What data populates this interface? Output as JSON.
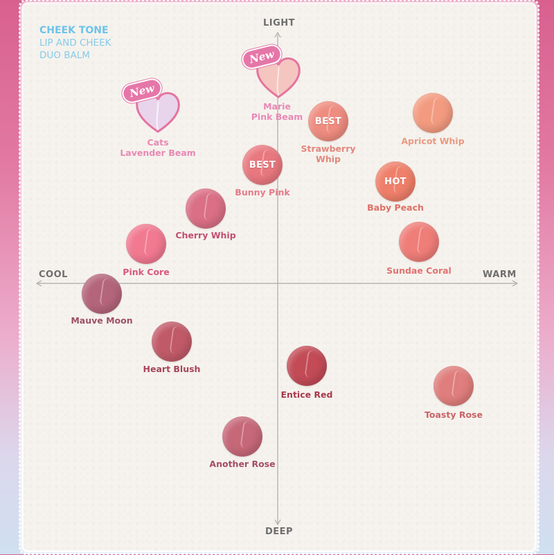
{
  "brand": {
    "line1": "CHEEK TONE",
    "line2": "LIP AND CHEEK",
    "line3": "DUO BALM"
  },
  "axes": {
    "top": "LIGHT",
    "bottom": "DEEP",
    "left": "COOL",
    "right": "WARM"
  },
  "new_badge": "New",
  "new_items": [
    {
      "id": "cats",
      "name": "Cats\nLavender Beam",
      "color": "#e7d3ea",
      "edge": "#e4709f"
    },
    {
      "id": "marie",
      "name": "Marie\nPink Beam",
      "color": "#f4c5bf",
      "edge": "#e4709f"
    }
  ],
  "swatches": [
    {
      "id": "strawberry-whip",
      "name": "Strawberry\nWhip",
      "badge": "BEST",
      "color": "#ef8c80",
      "label_color": "#e2867c"
    },
    {
      "id": "apricot-whip",
      "name": "Apricot Whip",
      "badge": "",
      "color": "#f39b80",
      "label_color": "#e99a82"
    },
    {
      "id": "bunny-pink",
      "name": "Bunny Pink",
      "badge": "BEST",
      "color": "#e8787f",
      "label_color": "#e57c8a"
    },
    {
      "id": "baby-peach",
      "name": "Baby Peach",
      "badge": "HOT",
      "color": "#ef7f6a",
      "label_color": "#de6f66"
    },
    {
      "id": "cherry-whip",
      "name": "Cherry Whip",
      "badge": "",
      "color": "#da6f85",
      "label_color": "#c24f6e"
    },
    {
      "id": "sundae-coral",
      "name": "Sundae Coral",
      "badge": "",
      "color": "#ef7d78",
      "label_color": "#e27170"
    },
    {
      "id": "pink-core",
      "name": "Pink Core",
      "badge": "",
      "color": "#f17990",
      "label_color": "#d9587b"
    },
    {
      "id": "mauve-moon",
      "name": "Mauve Moon",
      "badge": "",
      "color": "#b4657b",
      "label_color": "#9e4f67"
    },
    {
      "id": "heart-blush",
      "name": "Heart Blush",
      "badge": "",
      "color": "#c15a68",
      "label_color": "#a8455a"
    },
    {
      "id": "entice-red",
      "name": "Entice Red",
      "badge": "",
      "color": "#c24b56",
      "label_color": "#a83a4c"
    },
    {
      "id": "toasty-rose",
      "name": "Toasty Rose",
      "badge": "",
      "color": "#df7e7c",
      "label_color": "#c96467"
    },
    {
      "id": "another-rose",
      "name": "Another Rose",
      "badge": "",
      "color": "#c66878",
      "label_color": "#a54d63"
    }
  ]
}
